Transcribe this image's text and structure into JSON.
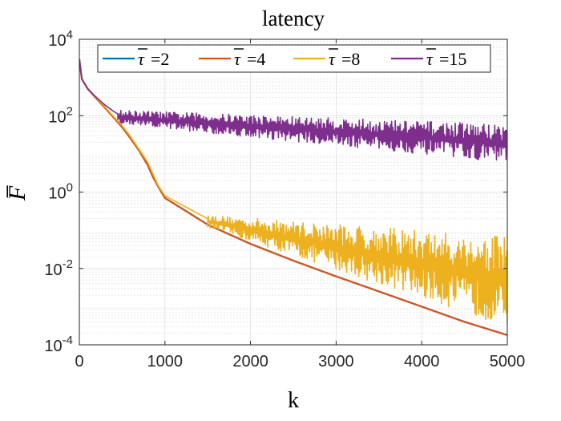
{
  "chart_data": {
    "type": "line",
    "title": "latency",
    "xlabel": "k",
    "ylabel": "F̅",
    "xlim": [
      0,
      5000
    ],
    "ylim": [
      0.0001,
      10000
    ],
    "yscale": "log",
    "grid": true,
    "legend_position": "top",
    "x_ticks": [
      {
        "value": 0,
        "label": "0"
      },
      {
        "value": 1000,
        "label": "1000"
      },
      {
        "value": 2000,
        "label": "2000"
      },
      {
        "value": 3000,
        "label": "3000"
      },
      {
        "value": 4000,
        "label": "4000"
      },
      {
        "value": 5000,
        "label": "5000"
      }
    ],
    "y_ticks": [
      {
        "value": 0.0001,
        "mantissa": "10",
        "exponent": "-4"
      },
      {
        "value": 0.01,
        "mantissa": "10",
        "exponent": "-2"
      },
      {
        "value": 1,
        "mantissa": "10",
        "exponent": "0"
      },
      {
        "value": 100,
        "mantissa": "10",
        "exponent": "2"
      },
      {
        "value": 10000,
        "mantissa": "10",
        "exponent": "4"
      }
    ],
    "series": [
      {
        "name": "τ̅ =2",
        "legend_symbol": "τ",
        "legend_value": "=2",
        "color": "#0072BD",
        "x": [
          0,
          30,
          100,
          200,
          300,
          400,
          500,
          600,
          700,
          800,
          860,
          920,
          1000,
          1500,
          2000,
          2500,
          3000,
          3500,
          4000,
          4500,
          5000
        ],
        "y": [
          3000,
          900,
          500,
          280,
          160,
          90,
          50,
          25,
          12,
          5,
          2.5,
          1.4,
          0.7,
          0.14,
          0.044,
          0.016,
          0.0062,
          0.0025,
          0.001,
          0.0004,
          0.00018
        ]
      },
      {
        "name": "τ̅ =4",
        "legend_symbol": "τ",
        "legend_value": "=4",
        "color": "#D95319",
        "x": [
          0,
          30,
          100,
          200,
          300,
          400,
          500,
          600,
          700,
          800,
          860,
          920,
          1000,
          1500,
          2000,
          2500,
          3000,
          3500,
          4000,
          4500,
          5000
        ],
        "y": [
          3000,
          900,
          500,
          280,
          160,
          90,
          50,
          25,
          12,
          5,
          2.5,
          1.4,
          0.7,
          0.14,
          0.044,
          0.016,
          0.0062,
          0.0025,
          0.001,
          0.0004,
          0.00018
        ]
      },
      {
        "name": "τ̅ =8",
        "legend_symbol": "τ",
        "legend_value": "=8",
        "color": "#EDB120",
        "x": [
          0,
          30,
          100,
          200,
          300,
          400,
          500,
          600,
          700,
          800,
          860,
          920,
          1000,
          1500,
          2000,
          2500,
          3000,
          3500,
          4000,
          4500,
          5000
        ],
        "y": [
          3000,
          900,
          500,
          290,
          170,
          95,
          55,
          28,
          13,
          6,
          3,
          1.5,
          0.8,
          0.2,
          0.09,
          0.05,
          0.025,
          0.015,
          0.01,
          0.008,
          0.007
        ],
        "oscillation": {
          "start": 1500,
          "end": 5000,
          "upper_start": 0.25,
          "upper_end": 0.07,
          "lower_start": 0.12,
          "lower_end": 0.0003
        }
      },
      {
        "name": "τ̅ =15",
        "legend_symbol": "τ",
        "legend_value": "=15",
        "color": "#7E2F8E",
        "x": [
          0,
          30,
          100,
          200,
          300,
          400,
          500,
          600,
          700,
          800,
          900,
          1000,
          1500,
          2000,
          2500,
          3000,
          3500,
          4000,
          4500,
          5000
        ],
        "y": [
          3000,
          900,
          500,
          300,
          190,
          130,
          95,
          75,
          60,
          50,
          45,
          40,
          30,
          25,
          22,
          20,
          18,
          18,
          17,
          17
        ],
        "oscillation": {
          "start": 450,
          "end": 5000,
          "upper_start": 140,
          "upper_end": 60,
          "lower_start": 60,
          "lower_end": 6
        }
      }
    ]
  }
}
